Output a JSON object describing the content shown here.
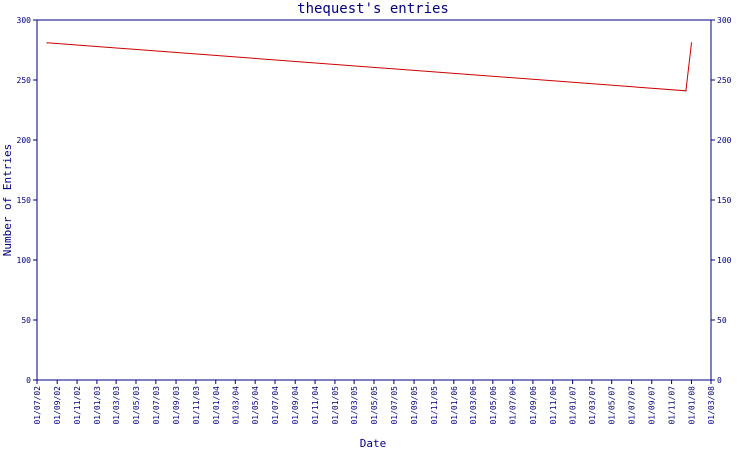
{
  "chart_data": {
    "type": "line",
    "title": "thequest's entries",
    "xlabel": "Date",
    "ylabel": "Number of Entries",
    "ylim": [
      0,
      300
    ],
    "y_ticks": [
      "0",
      "50",
      "100",
      "150",
      "200",
      "250",
      "300"
    ],
    "y_ticks_right": [
      "0",
      "50",
      "100",
      "150",
      "200",
      "250",
      "300"
    ],
    "x_ticks": [
      "01/07/02",
      "01/09/02",
      "01/11/02",
      "01/01/03",
      "01/03/03",
      "01/05/03",
      "01/07/03",
      "01/09/03",
      "01/11/03",
      "01/01/04",
      "01/03/04",
      "01/05/04",
      "01/07/04",
      "01/09/04",
      "01/11/04",
      "01/01/05",
      "01/03/05",
      "01/05/05",
      "01/07/05",
      "01/09/05",
      "01/11/05",
      "01/01/06",
      "01/03/06",
      "01/05/06",
      "01/07/06",
      "01/09/06",
      "01/11/06",
      "01/01/07",
      "01/03/07",
      "01/05/07",
      "01/07/07",
      "01/09/07",
      "01/11/07",
      "01/01/08",
      "01/03/08"
    ],
    "grid": false,
    "colors": {
      "line": "#cc0000",
      "axis": "#000080",
      "text": "#000080"
    },
    "series": [
      {
        "x": [
          "2002-08-01",
          "2007-12-15",
          "2008-01-01"
        ],
        "values": [
          281,
          241,
          281
        ]
      }
    ]
  }
}
